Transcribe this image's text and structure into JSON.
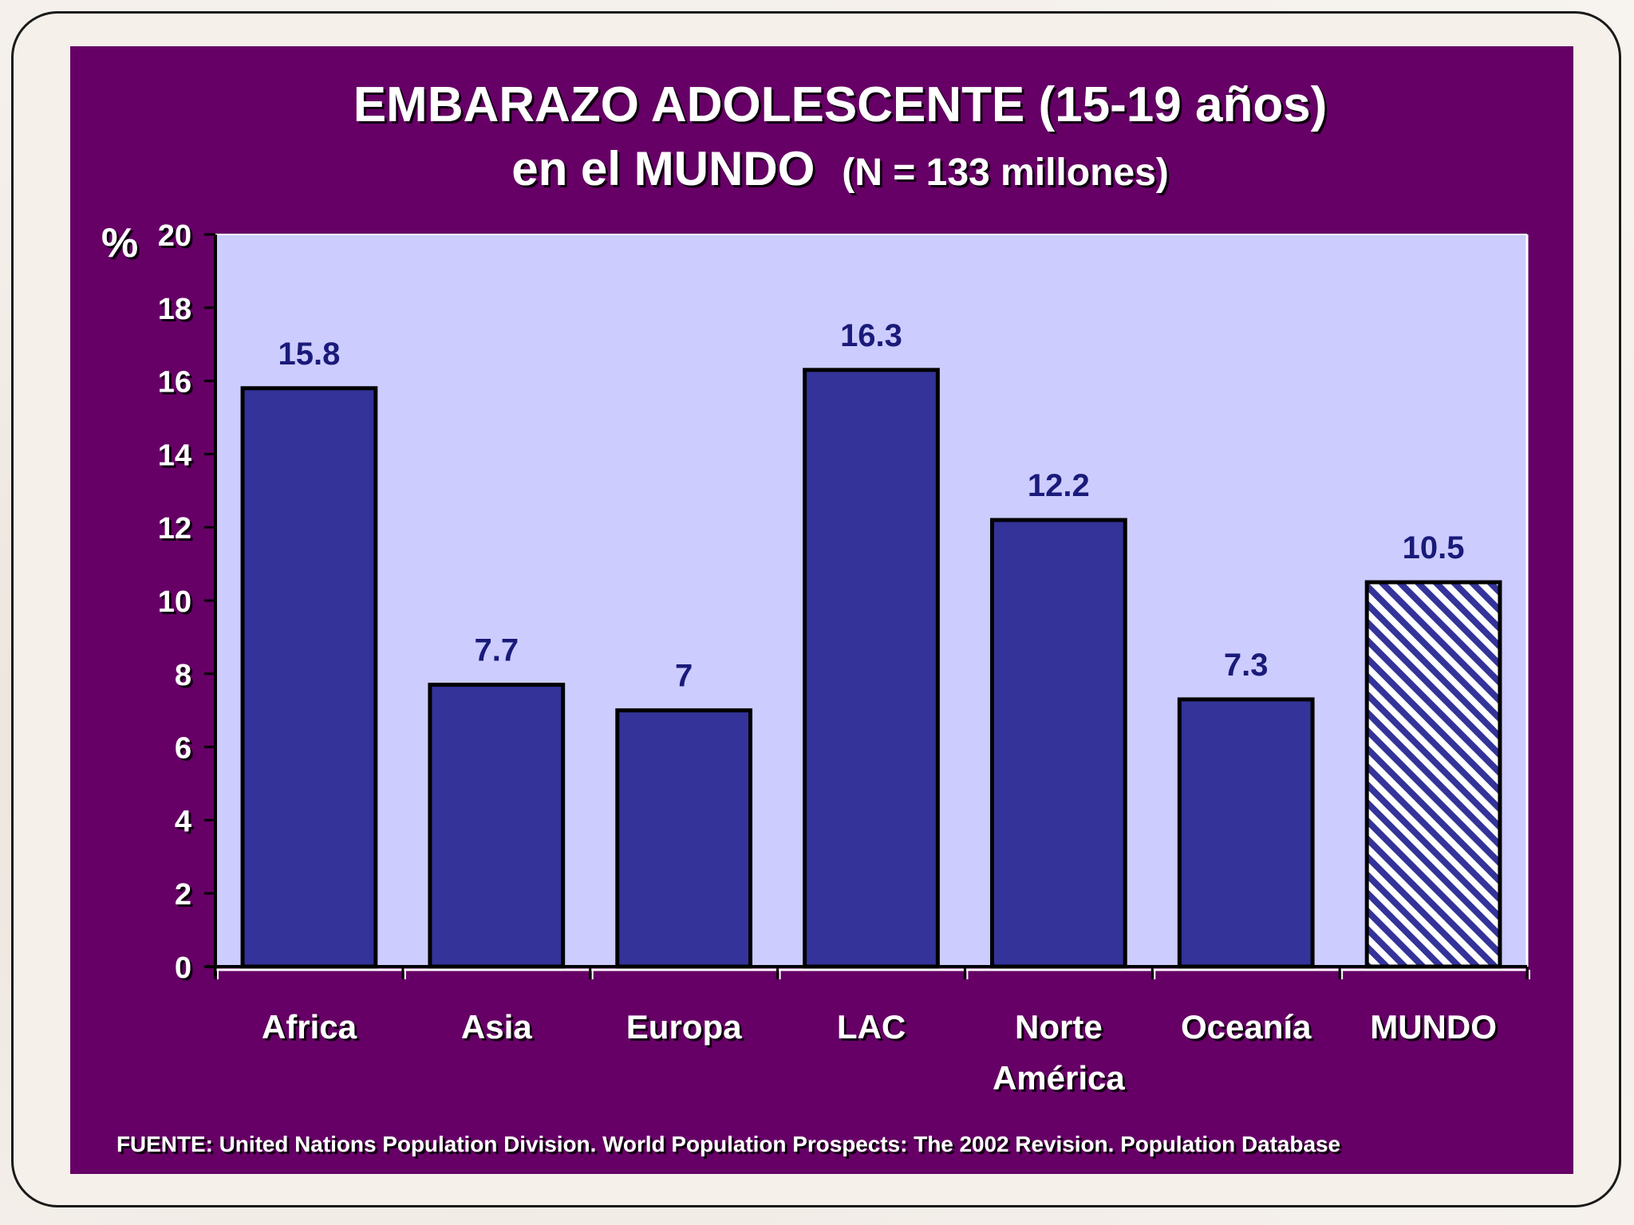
{
  "chart_data": {
    "type": "bar",
    "title": "EMBARAZO ADOLESCENTE (15-19 años)",
    "subtitle_main": "en el MUNDO",
    "subtitle_note": "(N = 133 millones)",
    "ylabel": "%",
    "xlabel": "",
    "ylim": [
      0,
      20
    ],
    "yticks": [
      0,
      2,
      4,
      6,
      8,
      10,
      12,
      14,
      16,
      18,
      20
    ],
    "categories": [
      [
        "Africa"
      ],
      [
        "Asia"
      ],
      [
        "Europa"
      ],
      [
        "LAC"
      ],
      [
        "Norte",
        "América"
      ],
      [
        "Oceanía"
      ],
      [
        "MUNDO"
      ]
    ],
    "values": [
      15.8,
      7.7,
      7,
      16.3,
      12.2,
      7.3,
      10.5
    ],
    "value_labels": [
      "15.8",
      "7.7",
      "7",
      "16.3",
      "12.2",
      "7.3",
      "10.5"
    ],
    "hatched": [
      false,
      false,
      false,
      false,
      false,
      false,
      true
    ],
    "grid": false,
    "legend": "none",
    "source": "FUENTE: United Nations Population Division. World Population Prospects: The 2002 Revision. Population Database"
  },
  "colors": {
    "panel": "#660066",
    "plot_area": "#ccccff",
    "bar_fill": "#333399",
    "bar_outline": "#000000",
    "hatch_stripe": "#333399",
    "hatch_bg": "#ffffff",
    "data_label": "#1a1a7a",
    "text": "#ffffff"
  }
}
